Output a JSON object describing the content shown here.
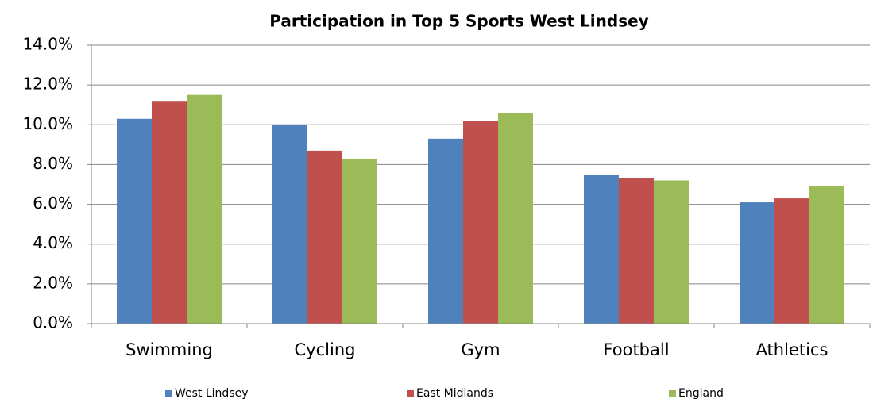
{
  "chart_data": {
    "type": "bar",
    "title": "Participation in Top 5 Sports West Lindsey",
    "categories": [
      "Swimming",
      "Cycling",
      "Gym",
      "Football",
      "Athletics"
    ],
    "series": [
      {
        "name": "West Lindsey",
        "color": "#4f81bd",
        "values": [
          10.3,
          10.0,
          9.3,
          7.5,
          6.1
        ]
      },
      {
        "name": "East Midlands",
        "color": "#c0504d",
        "values": [
          11.2,
          8.7,
          10.2,
          7.3,
          6.3
        ]
      },
      {
        "name": "England",
        "color": "#9bbb59",
        "values": [
          11.5,
          8.3,
          10.6,
          7.2,
          6.9
        ]
      }
    ],
    "ylim": [
      0,
      14
    ],
    "yticks": [
      {
        "value": 0,
        "label": "0.0%"
      },
      {
        "value": 2,
        "label": "2.0%"
      },
      {
        "value": 4,
        "label": "4.0%"
      },
      {
        "value": 6,
        "label": "6.0%"
      },
      {
        "value": 8,
        "label": "8.0%"
      },
      {
        "value": 10,
        "label": "10.0%"
      },
      {
        "value": 12,
        "label": "12.0%"
      },
      {
        "value": 14,
        "label": "14.0%"
      }
    ],
    "grid": true,
    "legend": "bottom"
  }
}
